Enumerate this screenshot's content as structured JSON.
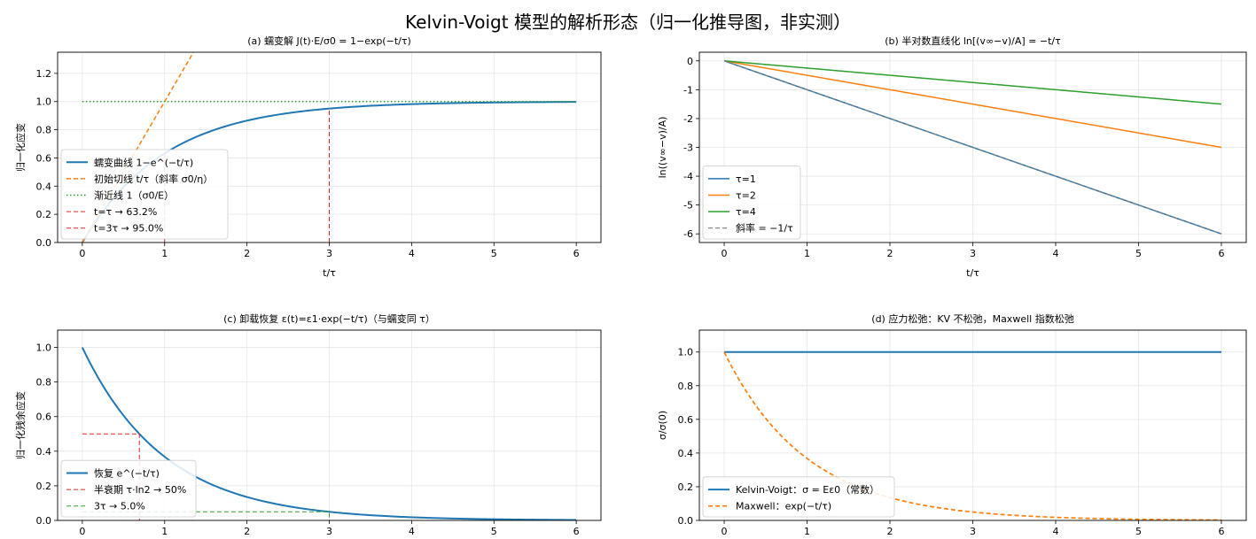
{
  "figure": {
    "title": "Kelvin-Voigt 模型的解析形态（归一化推导图，非实测）"
  },
  "chart_data": [
    {
      "id": "a",
      "type": "line",
      "title": "(a) 蠕变解 J(t)·E/σ0 = 1−exp(−t/τ)",
      "xlabel": "t/τ",
      "ylabel": "归一化应变",
      "xlim": [
        -0.3,
        6.3
      ],
      "ylim": [
        0,
        1.35
      ],
      "xticks": [
        0,
        1,
        2,
        3,
        4,
        5,
        6
      ],
      "xtick_labels": [
        "0",
        "1",
        "2",
        "3",
        "4",
        "5",
        "6"
      ],
      "yticks": [
        0,
        0.2,
        0.4,
        0.6,
        0.8,
        1.0,
        1.2
      ],
      "ytick_labels": [
        "0.0",
        "0.2",
        "0.4",
        "0.6",
        "0.8",
        "1.0",
        "1.2"
      ],
      "grid": true,
      "legend_position": "lower-left",
      "series": [
        {
          "name": "蠕变曲线 1−e^(−t/τ)",
          "kind": "exp_rise",
          "tau": 1,
          "x_range": [
            0,
            6
          ],
          "color": "#1f77b4",
          "style": "solid",
          "width": 2
        },
        {
          "name": "初始切线 t/τ（斜率 σ0/η）",
          "kind": "linear",
          "slope": 1,
          "intercept": 0,
          "x_range": [
            0,
            1.5
          ],
          "color": "#ff7f0e",
          "style": "dashed",
          "width": 1.5
        },
        {
          "name": "渐近线 1（σ0/E）",
          "kind": "hline",
          "y": 1,
          "x_range": [
            0,
            6
          ],
          "color": "#2ca02c",
          "style": "dotted",
          "width": 1.5
        },
        {
          "name": "t=τ → 63.2%",
          "kind": "vmarker",
          "x": 1,
          "y": 0.632,
          "color": "#d62728",
          "style": "dashed",
          "width": 1
        },
        {
          "name": "t=3τ → 95.0%",
          "kind": "vmarker",
          "x": 3,
          "y": 0.95,
          "color": "#d62728",
          "style": "dashed",
          "width": 1
        }
      ]
    },
    {
      "id": "b",
      "type": "line",
      "title": "(b) 半对数直线化 ln[(v∞−v)/A] = −t/τ",
      "xlabel": "t/τ",
      "ylabel": "ln((v∞−v)/A)",
      "xlim": [
        -0.3,
        6.3
      ],
      "ylim": [
        -6.3,
        0.3
      ],
      "xticks": [
        0,
        1,
        2,
        3,
        4,
        5,
        6
      ],
      "xtick_labels": [
        "0",
        "1",
        "2",
        "3",
        "4",
        "5",
        "6"
      ],
      "yticks": [
        0,
        -1,
        -2,
        -3,
        -4,
        -5,
        -6
      ],
      "ytick_labels": [
        "0",
        "-1",
        "-2",
        "-3",
        "-4",
        "-5",
        "-6"
      ],
      "grid": true,
      "legend_position": "lower-left",
      "series": [
        {
          "name": "τ=1",
          "kind": "linear",
          "slope": -1,
          "intercept": 0,
          "x_range": [
            0,
            6
          ],
          "color": "#1f77b4",
          "style": "solid",
          "width": 1.5
        },
        {
          "name": "τ=2",
          "kind": "linear",
          "slope": -0.5,
          "intercept": 0,
          "x_range": [
            0,
            6
          ],
          "color": "#ff7f0e",
          "style": "solid",
          "width": 1.5
        },
        {
          "name": "τ=4",
          "kind": "linear",
          "slope": -0.25,
          "intercept": 0,
          "x_range": [
            0,
            6
          ],
          "color": "#2ca02c",
          "style": "solid",
          "width": 1.5
        },
        {
          "name": "斜率 = −1/τ",
          "kind": "linear",
          "slope": -1,
          "intercept": 0,
          "x_range": [
            0,
            6
          ],
          "color": "#7f7f7f",
          "style": "dashed",
          "width": 1.2
        }
      ]
    },
    {
      "id": "c",
      "type": "line",
      "title": "(c) 卸载恢复 ε(t)=ε1·exp(−t/τ)（与蠕变同 τ）",
      "xlabel": "",
      "ylabel": "归一化残余应变",
      "xlim": [
        -0.3,
        6.3
      ],
      "ylim": [
        0,
        1.1
      ],
      "xticks": [
        0,
        1,
        2,
        3,
        4,
        5,
        6
      ],
      "xtick_labels": [
        "0",
        "1",
        "2",
        "3",
        "4",
        "5",
        "6"
      ],
      "yticks": [
        0,
        0.2,
        0.4,
        0.6,
        0.8,
        1.0
      ],
      "ytick_labels": [
        "0.0",
        "0.2",
        "0.4",
        "0.6",
        "0.8",
        "1.0"
      ],
      "grid": true,
      "legend_position": "lower-left",
      "series": [
        {
          "name": "恢复 e^(−t/τ)",
          "kind": "exp_decay",
          "tau": 1,
          "x_range": [
            0,
            6
          ],
          "color": "#1f77b4",
          "style": "solid",
          "width": 2
        },
        {
          "name": "半衰期 τ·ln2 → 50%",
          "kind": "lmarker",
          "x": 0.693,
          "y": 0.5,
          "color": "#d62728",
          "style": "dashed",
          "width": 1
        },
        {
          "name": "3τ → 5.0%",
          "kind": "lmarker",
          "x": 3,
          "y": 0.05,
          "color": "#2ca02c",
          "style": "dashed",
          "width": 1
        }
      ]
    },
    {
      "id": "d",
      "type": "line",
      "title": "(d) 应力松弛：KV 不松弛，Maxwell 指数松弛",
      "xlabel": "",
      "ylabel": "σ/σ(0)",
      "xlim": [
        -0.3,
        6.3
      ],
      "ylim": [
        0,
        1.13
      ],
      "xticks": [
        0,
        1,
        2,
        3,
        4,
        5,
        6
      ],
      "xtick_labels": [
        "0",
        "1",
        "2",
        "3",
        "4",
        "5",
        "6"
      ],
      "yticks": [
        0,
        0.2,
        0.4,
        0.6,
        0.8,
        1.0
      ],
      "ytick_labels": [
        "0.0",
        "0.2",
        "0.4",
        "0.6",
        "0.8",
        "1.0"
      ],
      "grid": true,
      "legend_position": "lower-left",
      "series": [
        {
          "name": "Kelvin-Voigt：σ = Eε0（常数）",
          "kind": "hline",
          "y": 1,
          "x_range": [
            0,
            6
          ],
          "color": "#1f77b4",
          "style": "solid",
          "width": 2
        },
        {
          "name": "Maxwell：exp(−t/τ)",
          "kind": "exp_decay",
          "tau": 1,
          "x_range": [
            0,
            6
          ],
          "color": "#ff7f0e",
          "style": "dashed",
          "width": 1.7
        }
      ]
    }
  ]
}
